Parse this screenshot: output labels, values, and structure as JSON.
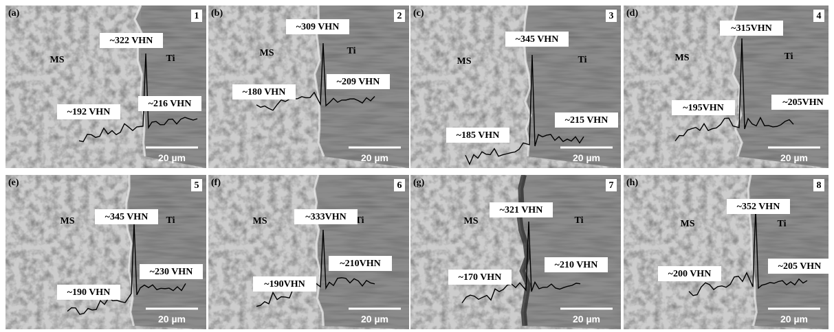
{
  "panels": [
    {
      "letter": "(a)",
      "number": "1",
      "ms": "MS",
      "ti": "Ti",
      "peak": "~322 VHN",
      "left": "~192 VHN",
      "right": "~216 VHN",
      "scale": "20 µm"
    },
    {
      "letter": "(b)",
      "number": "2",
      "ms": "MS",
      "ti": "Ti",
      "peak": "~309 VHN",
      "left": "~180 VHN",
      "right": "~209 VHN",
      "scale": "20 µm"
    },
    {
      "letter": "(c)",
      "number": "3",
      "ms": "MS",
      "ti": "Ti",
      "peak": "~345 VHN",
      "left": "~185 VHN",
      "right": "~215 VHN",
      "scale": "20 µm"
    },
    {
      "letter": "(d)",
      "number": "4",
      "ms": "MS",
      "ti": "Ti",
      "peak": "~315VHN",
      "left": "~195VHN",
      "right": "~205VHN",
      "scale": "20 µm"
    },
    {
      "letter": "(e)",
      "number": "5",
      "ms": "MS",
      "ti": "Ti",
      "peak": "~345 VHN",
      "left": "~190 VHN",
      "right": "~230 VHN",
      "scale": "20 µm"
    },
    {
      "letter": "(f)",
      "number": "6",
      "ms": "MS",
      "ti": "Ti",
      "peak": "~333VHN",
      "left": "~190VHN",
      "right": "~210VHN",
      "scale": "20 µm"
    },
    {
      "letter": "(g)",
      "number": "7",
      "ms": "MS",
      "ti": "Ti",
      "peak": "~321 VHN",
      "left": "~170 VHN",
      "right": "~210 VHN",
      "scale": "20 µm"
    },
    {
      "letter": "(h)",
      "number": "8",
      "ms": "MS",
      "ti": "Ti",
      "peak": "~352 VHN",
      "left": "~200 VHN",
      "right": "~205 VHN",
      "scale": "20 µm"
    }
  ]
}
